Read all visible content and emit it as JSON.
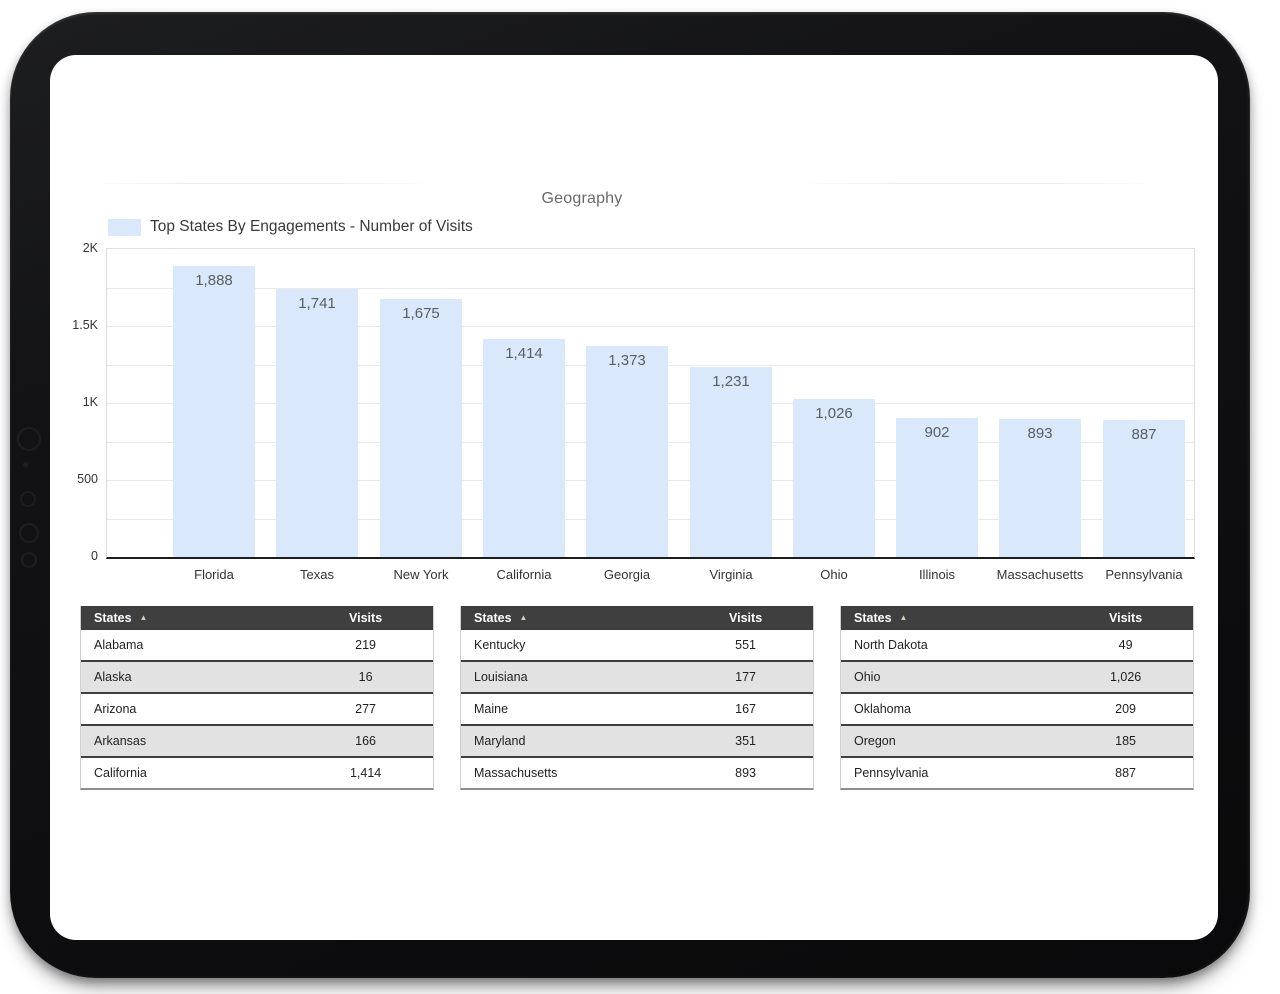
{
  "chart_data": {
    "type": "bar",
    "title": "Geography",
    "legend": "Top States By Engagements - Number of Visits",
    "categories": [
      "Florida",
      "Texas",
      "New York",
      "California",
      "Georgia",
      "Virginia",
      "Ohio",
      "Illinois",
      "Massachusetts",
      "Pennsylvania"
    ],
    "values": [
      1888,
      1741,
      1675,
      1414,
      1373,
      1231,
      1026,
      902,
      893,
      887
    ],
    "value_labels": [
      "1,888",
      "1,741",
      "1,675",
      "1,414",
      "1,373",
      "1,231",
      "1,026",
      "902",
      "893",
      "887"
    ],
    "xlabel": "",
    "ylabel": "",
    "ylim": [
      0,
      2000
    ],
    "yticks": [
      {
        "value": 2000,
        "label": "2K"
      },
      {
        "value": 1500,
        "label": "1.5K"
      },
      {
        "value": 1000,
        "label": "1K"
      },
      {
        "value": 500,
        "label": "500"
      },
      {
        "value": 0,
        "label": "0"
      }
    ],
    "grid": true,
    "grid_step": 250,
    "legend_position": "top-left",
    "bar_color": "#d9e8fb"
  },
  "tables": [
    {
      "columns": [
        "States",
        "Visits"
      ],
      "sort": {
        "column": "States",
        "direction": "ascending"
      },
      "rows": [
        {
          "state": "Alabama",
          "visits": "219"
        },
        {
          "state": "Alaska",
          "visits": "16"
        },
        {
          "state": "Arizona",
          "visits": "277"
        },
        {
          "state": "Arkansas",
          "visits": "166"
        },
        {
          "state": "California",
          "visits": "1,414"
        }
      ]
    },
    {
      "columns": [
        "States",
        "Visits"
      ],
      "sort": {
        "column": "States",
        "direction": "ascending"
      },
      "rows": [
        {
          "state": "Kentucky",
          "visits": "551"
        },
        {
          "state": "Louisiana",
          "visits": "177"
        },
        {
          "state": "Maine",
          "visits": "167"
        },
        {
          "state": "Maryland",
          "visits": "351"
        },
        {
          "state": "Massachusetts",
          "visits": "893"
        }
      ]
    },
    {
      "columns": [
        "States",
        "Visits"
      ],
      "sort": {
        "column": "States",
        "direction": "ascending"
      },
      "rows": [
        {
          "state": "North Dakota",
          "visits": "49"
        },
        {
          "state": "Ohio",
          "visits": "1,026"
        },
        {
          "state": "Oklahoma",
          "visits": "209"
        },
        {
          "state": "Oregon",
          "visits": "185"
        },
        {
          "state": "Pennsylvania",
          "visits": "887"
        }
      ]
    }
  ],
  "colors": {
    "bar": "#d9e8fb",
    "table_header_bg": "#3f3f40",
    "row_stripe": "#e2e2e2",
    "sort_icon": "#d6cdb8",
    "axis_line": "#1c1c1c"
  }
}
